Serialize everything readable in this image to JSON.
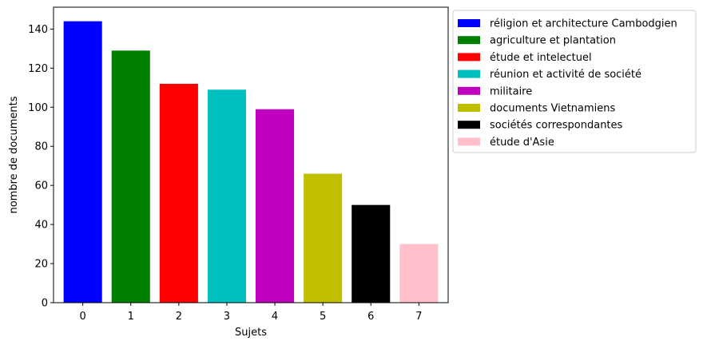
{
  "chart_data": {
    "type": "bar",
    "categories": [
      "0",
      "1",
      "2",
      "3",
      "4",
      "5",
      "6",
      "7"
    ],
    "values": [
      144,
      129,
      112,
      109,
      99,
      66,
      50,
      30
    ],
    "colors": [
      "#0000ff",
      "#008000",
      "#ff0000",
      "#00bfbf",
      "#bf00bf",
      "#bfbf00",
      "#000000",
      "#ffc0cb"
    ],
    "legend_labels": [
      "réligion et architecture Cambodgien",
      "agriculture et plantation",
      "étude et intelectuel",
      "réunion et activité de société",
      "militaire",
      "documents Vietnamiens",
      "sociétés correspondantes",
      "étude d'Asie"
    ],
    "xlabel": "Sujets",
    "ylabel": "nombre de documents",
    "ylim": [
      0,
      151.2
    ],
    "yticks": [
      0,
      20,
      40,
      60,
      80,
      100,
      120,
      140
    ],
    "grid": false,
    "legend_position": "outside-top-right"
  }
}
